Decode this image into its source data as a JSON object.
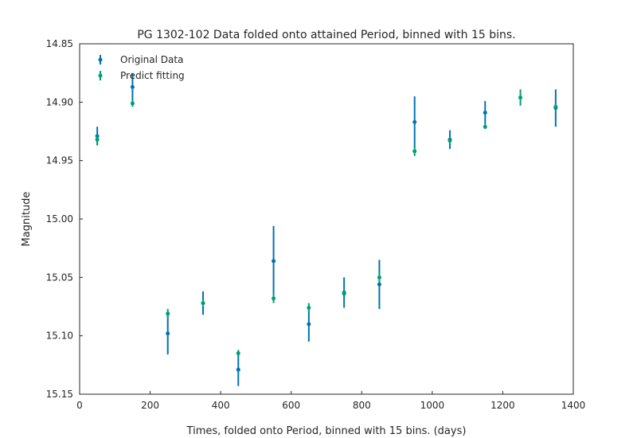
{
  "chart_data": {
    "type": "scatter",
    "title": "PG 1302-102 Data folded onto attained Period, binned with 15 bins.",
    "xlabel": "Times, folded onto Period, binned with 15 bins. (days)",
    "ylabel": "Magnitude",
    "xlim": [
      0,
      1400
    ],
    "ylim": [
      15.15,
      14.85
    ],
    "y_inverted": true,
    "x_ticks": [
      0,
      200,
      400,
      600,
      800,
      1000,
      1200,
      1400
    ],
    "x_tick_labels": [
      "0",
      "200",
      "400",
      "600",
      "800",
      "1000",
      "1200",
      "1400"
    ],
    "y_ticks": [
      14.85,
      14.9,
      14.95,
      15.0,
      15.05,
      15.1,
      15.15
    ],
    "y_tick_labels": [
      "14.85",
      "14.90",
      "14.95",
      "15.00",
      "15.05",
      "15.10",
      "15.15"
    ],
    "grid": false,
    "legend_position": "upper-left",
    "series": [
      {
        "name": "Original Data",
        "color": "#0072b2",
        "x": [
          50,
          150,
          250,
          350,
          450,
          550,
          650,
          750,
          850,
          950,
          1050,
          1150,
          1250,
          1350
        ],
        "y": [
          14.929,
          14.887,
          15.098,
          15.072,
          15.129,
          15.036,
          15.09,
          15.063,
          15.056,
          14.917,
          14.932,
          14.909,
          null,
          14.905
        ],
        "err": [
          0.008,
          0.012,
          0.018,
          0.01,
          0.014,
          0.03,
          0.015,
          0.013,
          0.021,
          0.022,
          0.008,
          0.01,
          null,
          0.016
        ]
      },
      {
        "name": "Predict fitting",
        "color": "#009e73",
        "x": [
          50,
          150,
          250,
          350,
          450,
          550,
          650,
          750,
          850,
          950,
          1050,
          1150,
          1250,
          1350
        ],
        "y": [
          14.932,
          14.901,
          15.081,
          15.072,
          15.115,
          15.068,
          15.076,
          15.064,
          15.05,
          14.942,
          14.933,
          14.921,
          14.896,
          14.904
        ],
        "err": [
          0.004,
          0.003,
          0.004,
          0.003,
          0.003,
          0.004,
          0.004,
          0.003,
          0.004,
          0.004,
          0.003,
          0.002,
          0.007,
          0.003
        ]
      }
    ]
  }
}
